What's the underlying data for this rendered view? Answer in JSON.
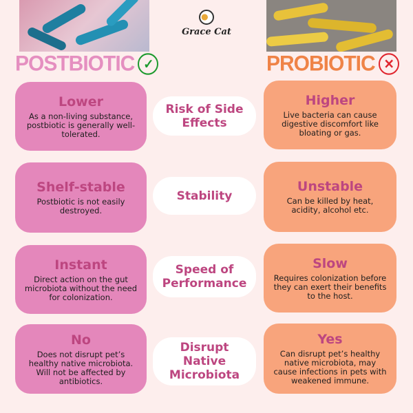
{
  "brand": "Grace Cat",
  "left_heading": "POSTBIOTIC",
  "right_heading": "PROBIOTIC",
  "colors": {
    "background": "#fdeeed",
    "postbiotic": "#e487bb",
    "probiotic": "#f8a47c",
    "title": "#bd4680",
    "check": "#1c9a2e",
    "cross": "#e0262f"
  },
  "icons": {
    "left": "check-circle-icon",
    "right": "x-circle-icon"
  },
  "rows": [
    {
      "criterion": "Risk of Side Effects",
      "post_title": "Lower",
      "post_desc": "As a non-living substance, postbiotic is generally well-tolerated.",
      "pro_title": "Higher",
      "pro_desc": "Live bacteria can cause digestive discomfort like bloating or gas."
    },
    {
      "criterion": "Stability",
      "post_title": "Shelf-stable",
      "post_desc": "Postbiotic is not easily destroyed.",
      "pro_title": "Unstable",
      "pro_desc": "Can be killed by heat, acidity, alcohol etc."
    },
    {
      "criterion": "Speed of Performance",
      "post_title": "Instant",
      "post_desc": "Direct action on the gut microbiota without the need for colonization.",
      "pro_title": "Slow",
      "pro_desc": "Requires colonization before they can exert their benefits to the host."
    },
    {
      "criterion": "Disrupt Native Microbiota",
      "post_title": "No",
      "post_desc": "Does not disrupt pet’s healthy native microbiota. Will not be affected by antibiotics.",
      "pro_title": "Yes",
      "pro_desc": "Can disrupt pet’s healthy native microbiota, may cause infections in pets with weakened immune."
    }
  ]
}
